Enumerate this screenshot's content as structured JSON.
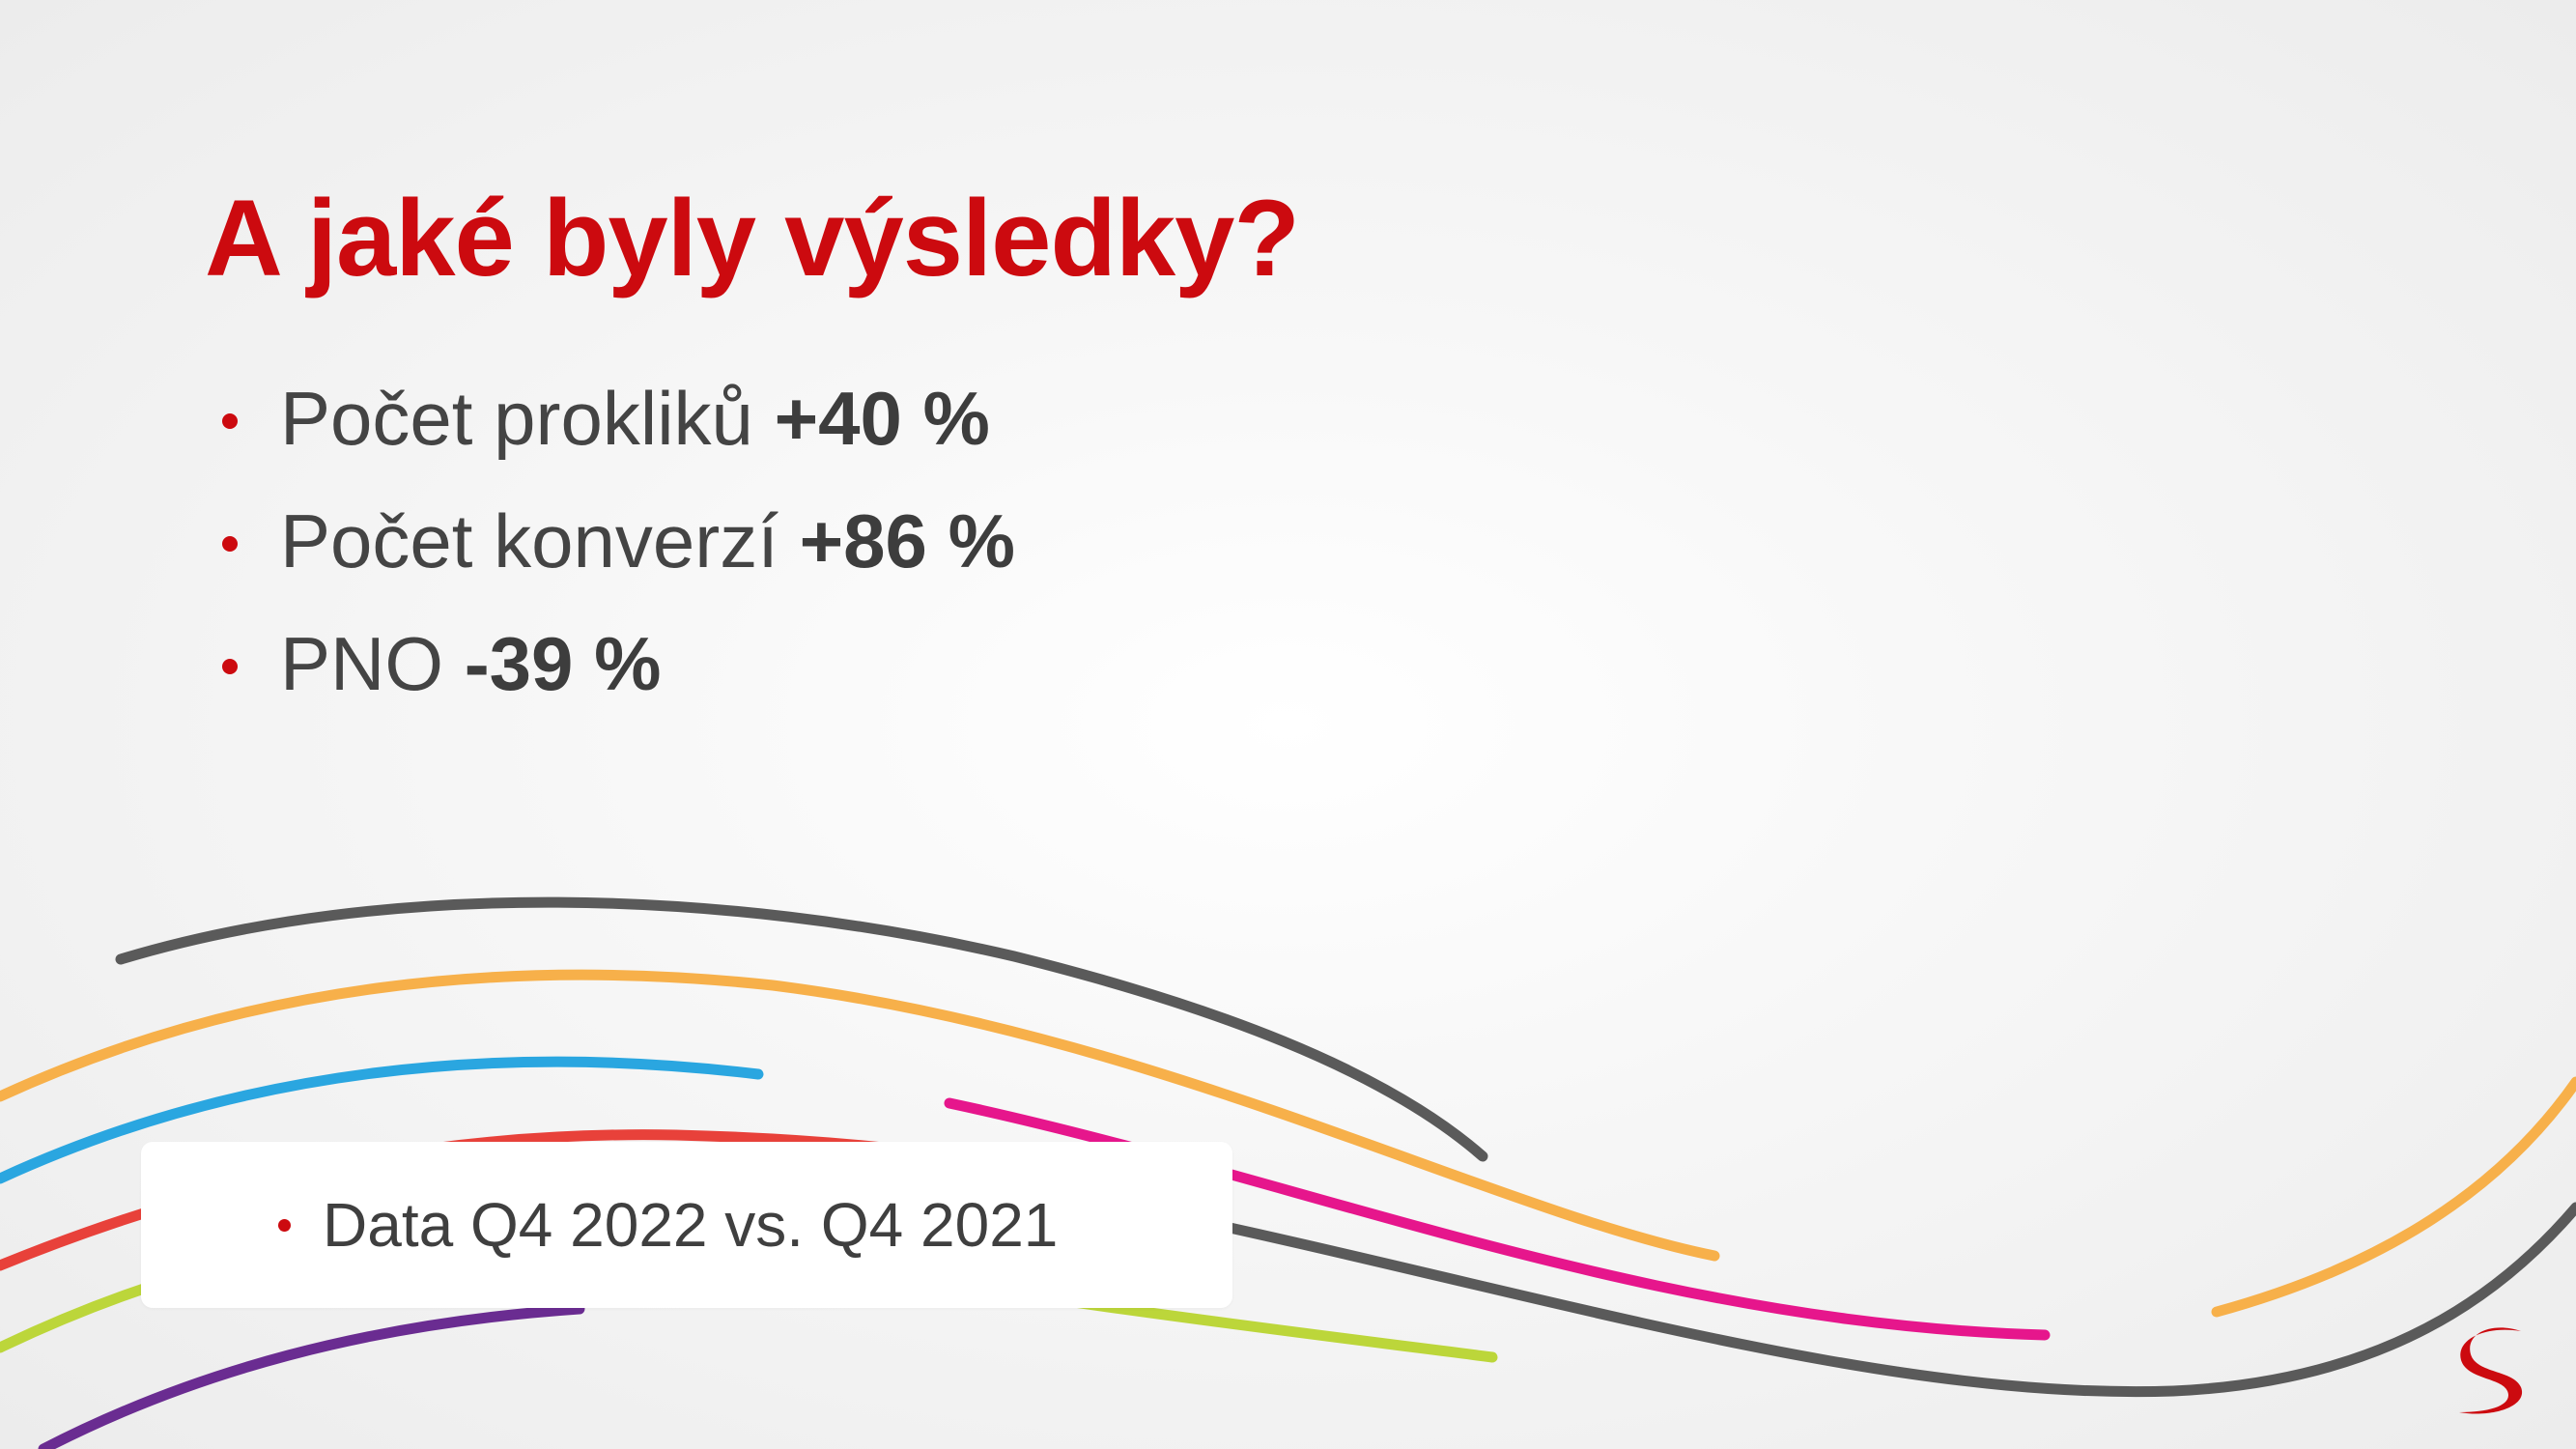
{
  "slide": {
    "title": "A jaké byly výsledky?",
    "bullets": [
      {
        "text": "Počet prokliků ",
        "value": "+40 %"
      },
      {
        "text": "Počet konverzí ",
        "value": "+86 %"
      },
      {
        "text": "PNO ",
        "value": "-39 %"
      }
    ],
    "note": {
      "text": "Data Q4 2022 vs. Q4 2021"
    }
  },
  "colors": {
    "accent": "#cc0a0f",
    "text": "#444444",
    "wave_dark": "#5a5a5a",
    "wave_orange": "#f7b04a",
    "wave_blue": "#2aa6e0",
    "wave_red": "#e8413a",
    "wave_magenta": "#e6168c",
    "wave_lime": "#bcd63a",
    "wave_purple": "#6a2c91"
  },
  "icons": {
    "logo": "brand-s-logo-icon"
  }
}
